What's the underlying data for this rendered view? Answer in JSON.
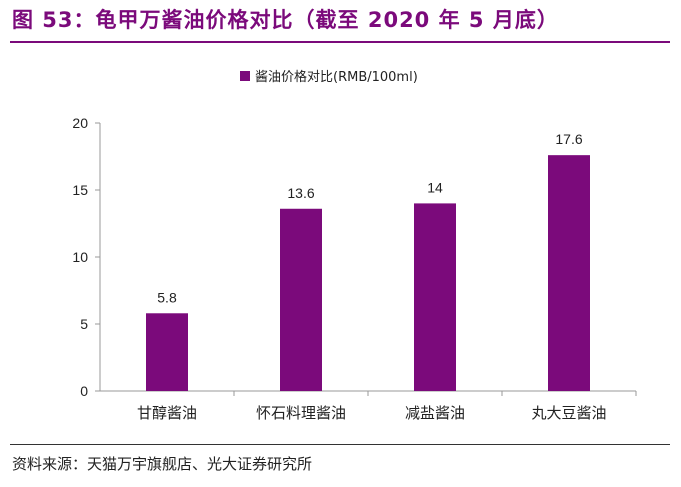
{
  "header": {
    "title": "图 53：龟甲万酱油价格对比（截至 2020 年 5 月底）"
  },
  "footer": {
    "source": "资料来源：天猫万宇旗舰店、光大证券研究所"
  },
  "colors": {
    "accent": "#7b0a7b",
    "bar": "#7b0a7b"
  },
  "chart_data": {
    "type": "bar",
    "title": "",
    "categories": [
      "甘醇酱油",
      "怀石料理酱油",
      "减盐酱油",
      "丸大豆酱油"
    ],
    "series": [
      {
        "name": "酱油价格对比(RMB/100ml)",
        "values": [
          5.8,
          13.6,
          14,
          17.6
        ]
      }
    ],
    "value_labels": [
      "5.8",
      "13.6",
      "14",
      "17.6"
    ],
    "yticks": [
      0,
      5,
      10,
      15,
      20
    ],
    "ylim": [
      0,
      20
    ],
    "xlabel": "",
    "ylabel": "",
    "legend": "top-center",
    "grid": false
  }
}
